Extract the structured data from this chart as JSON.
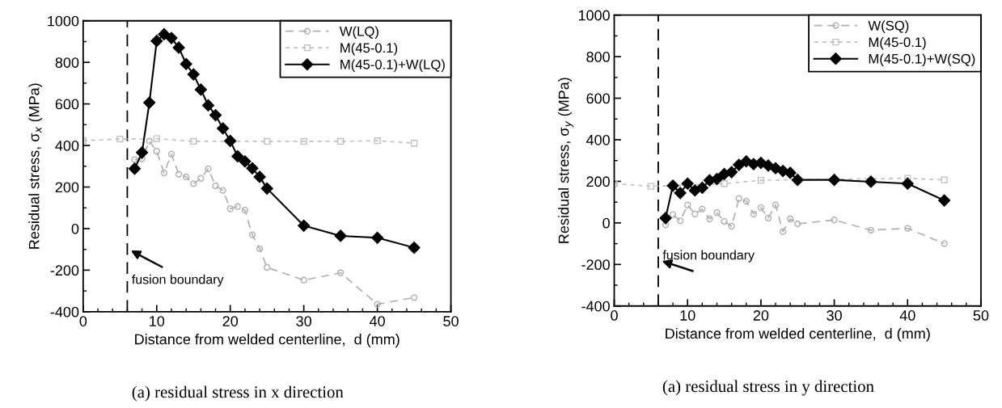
{
  "chart_data": [
    {
      "type": "line",
      "title": "(a) residual stress in x direction",
      "xlabel": "Distance from welded centerline,  d (mm)",
      "ylabel": "Residual stress, σ$_{x}$ (MPa)",
      "xlim": [
        0,
        50
      ],
      "ylim": [
        -400,
        1000
      ],
      "xticks": [
        0,
        10,
        20,
        30,
        40,
        50
      ],
      "yticks": [
        -400,
        -200,
        0,
        200,
        400,
        600,
        800,
        1000
      ],
      "grid": false,
      "legend": "top right",
      "ref_lines": [
        {
          "axis": "x",
          "value": 6,
          "color": "#000000",
          "line_style": "dashed"
        }
      ],
      "annotations": [
        {
          "text": "fusion boundary",
          "x": 6,
          "y": -100
        }
      ],
      "series": [
        {
          "name": "W(LQ)",
          "color": "#b0b0b0",
          "marker": "circle",
          "line_style": "dashed",
          "x": [
            7,
            8,
            9,
            10,
            11,
            12,
            13,
            14,
            15,
            16,
            17,
            18,
            19,
            20,
            21,
            22,
            23,
            24,
            25,
            30,
            35,
            40,
            45
          ],
          "values": [
            332,
            336,
            421,
            372,
            268,
            358,
            262,
            249,
            216,
            242,
            288,
            206,
            184,
            96,
            106,
            89,
            -30,
            -97,
            -187,
            -248,
            -213,
            -364,
            -332
          ]
        },
        {
          "name": "M(45-0.1)",
          "color": "#c0c0c0",
          "marker": "square",
          "line_style": "dotted",
          "x": [
            0,
            5,
            10,
            15,
            25,
            30,
            35,
            40,
            45
          ],
          "values": [
            423,
            431,
            433,
            420,
            420,
            420,
            420,
            423,
            411
          ]
        },
        {
          "name": "M(45-0.1)+W(LQ)",
          "color": "#000000",
          "marker": "diamond",
          "line_style": "solid",
          "x": [
            7,
            8,
            9,
            10,
            11,
            12,
            13,
            14,
            15,
            16,
            17,
            18,
            19,
            20,
            21,
            22,
            23,
            24,
            25,
            30,
            35,
            40,
            45
          ],
          "values": [
            288,
            366,
            606,
            903,
            935,
            917,
            871,
            792,
            742,
            669,
            593,
            546,
            482,
            422,
            348,
            323,
            290,
            249,
            193,
            14,
            -35,
            -44,
            -92
          ]
        }
      ]
    },
    {
      "type": "line",
      "title": "(a) residual stress in y direction",
      "xlabel": "Distance from welded centerline,  d (mm)",
      "ylabel": "Residual stress, σ$_{y}$ (MPa)",
      "xlim": [
        0,
        50
      ],
      "ylim": [
        -400,
        1000
      ],
      "xticks": [
        0,
        10,
        20,
        30,
        40,
        50
      ],
      "yticks": [
        -400,
        -200,
        0,
        200,
        400,
        600,
        800,
        1000
      ],
      "grid": false,
      "legend": "top right",
      "ref_lines": [
        {
          "axis": "x",
          "value": 6,
          "color": "#000000",
          "line_style": "dashed"
        }
      ],
      "annotations": [
        {
          "text": "fusion boundary",
          "x": 6,
          "y": -180
        }
      ],
      "series": [
        {
          "name": "W(SQ)",
          "color": "#b0b0b0",
          "marker": "circle",
          "line_style": "dashed",
          "x": [
            7,
            8,
            9,
            10,
            11,
            12,
            13,
            14,
            15,
            16,
            17,
            18,
            19,
            20,
            21,
            22,
            23,
            24,
            25,
            30,
            35,
            40,
            45
          ],
          "values": [
            -9,
            40,
            10,
            86,
            43,
            66,
            19,
            49,
            7,
            -16,
            117,
            104,
            43,
            73,
            23,
            86,
            -42,
            19,
            -5,
            14,
            -35,
            -26,
            -100
          ]
        },
        {
          "name": "M(45-0.1)",
          "color": "#c0c0c0",
          "marker": "square",
          "line_style": "dotted",
          "x": [
            0,
            5,
            15,
            20,
            40,
            45
          ],
          "values": [
            189,
            176,
            189,
            205,
            215,
            207
          ]
        },
        {
          "name": "M(45-0.1)+W(SQ)",
          "color": "#000000",
          "marker": "diamond",
          "line_style": "solid",
          "x": [
            7,
            8,
            9,
            10,
            11,
            12,
            13,
            14,
            15,
            16,
            17,
            18,
            19,
            20,
            21,
            22,
            23,
            24,
            25,
            30,
            35,
            40,
            45
          ],
          "values": [
            23,
            179,
            144,
            189,
            156,
            169,
            205,
            211,
            235,
            244,
            279,
            296,
            283,
            289,
            276,
            263,
            250,
            241,
            207,
            207,
            198,
            189,
            108
          ]
        }
      ]
    }
  ]
}
